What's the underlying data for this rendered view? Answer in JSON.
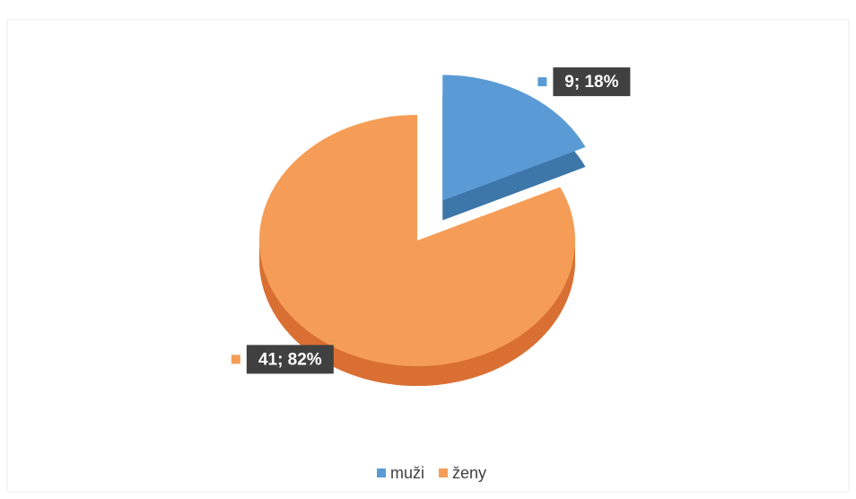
{
  "chart_data": {
    "type": "pie",
    "categories": [
      "muži",
      "ženy"
    ],
    "values": [
      9,
      41
    ],
    "value_labels": [
      "9; 18%",
      "41; 82%"
    ],
    "colors": [
      "#5b9bd5",
      "#f59d56"
    ],
    "side_colors": [
      "#3d76a8",
      "#d96f33"
    ],
    "explode": [
      true,
      false
    ],
    "legend": "bottom"
  }
}
